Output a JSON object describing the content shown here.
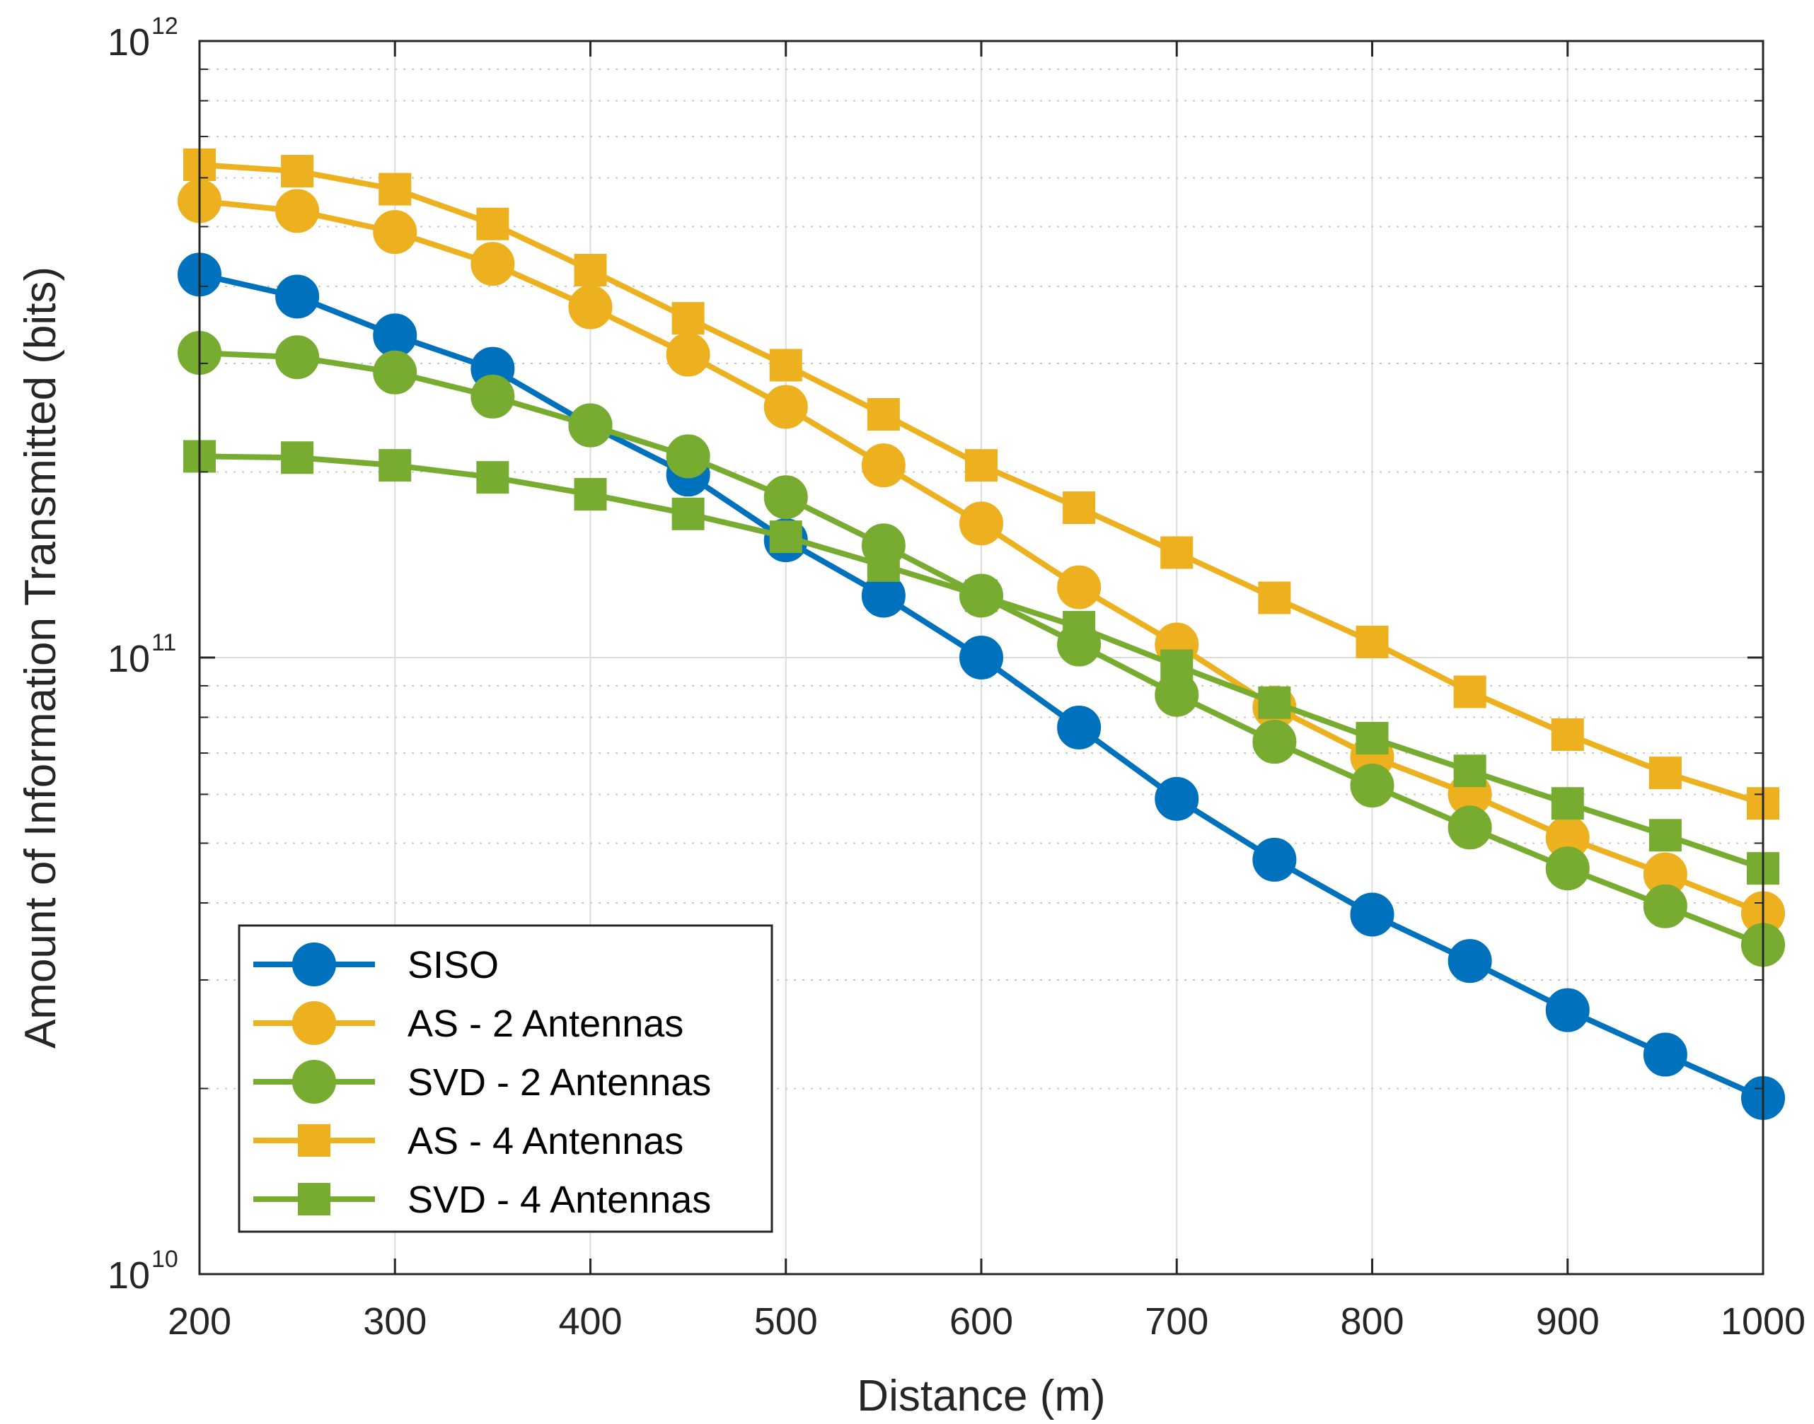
{
  "chart_data": {
    "type": "line",
    "title": "",
    "xlabel": "Distance (m)",
    "ylabel": "Amount of Information Transmitted (bits)",
    "xlim": [
      200,
      1000
    ],
    "ylim": [
      10000000000,
      1000000000000
    ],
    "yscale": "log",
    "grid": true,
    "legend_position": "bottom-left",
    "x_ticks": [
      200,
      300,
      400,
      500,
      600,
      700,
      800,
      900,
      1000
    ],
    "x_tick_labels": [
      "200",
      "300",
      "400",
      "500",
      "600",
      "700",
      "800",
      "900",
      "1000"
    ],
    "y_ticks": [
      {
        "value": 10000000000,
        "base": "10",
        "exp": "10"
      },
      {
        "value": 100000000000,
        "base": "10",
        "exp": "11"
      },
      {
        "value": 1000000000000,
        "base": "10",
        "exp": "12"
      }
    ],
    "x": [
      200,
      250,
      300,
      350,
      400,
      450,
      500,
      550,
      600,
      650,
      700,
      750,
      800,
      850,
      900,
      950,
      1000
    ],
    "series": [
      {
        "name": "SISO",
        "color": "#0072BD",
        "marker": "circle",
        "values": [
          418000000000.0,
          385000000000.0,
          333000000000.0,
          294000000000.0,
          238000000000.0,
          198000000000.0,
          155000000000.0,
          126000000000.0,
          100000000000.0,
          77000000000.0,
          59000000000.0,
          47000000000.0,
          38300000000.0,
          32200000000.0,
          26800000000.0,
          22700000000.0,
          19300000000.0
        ]
      },
      {
        "name": "AS - 2 Antennas",
        "color": "#EDB120",
        "marker": "circle",
        "values": [
          550000000000.0,
          530000000000.0,
          490000000000.0,
          435000000000.0,
          370000000000.0,
          310000000000.0,
          255000000000.0,
          205000000000.0,
          165000000000.0,
          130000000000.0,
          105000000000.0,
          83000000000.0,
          69000000000.0,
          60000000000.0,
          51000000000.0,
          44500000000.0,
          38500000000.0
        ]
      },
      {
        "name": "SVD - 2 Antennas",
        "color": "#77AC30",
        "marker": "circle",
        "values": [
          312000000000.0,
          307000000000.0,
          290000000000.0,
          265000000000.0,
          238000000000.0,
          212000000000.0,
          182000000000.0,
          152000000000.0,
          126000000000.0,
          105000000000.0,
          87000000000.0,
          73000000000.0,
          62000000000.0,
          53000000000.0,
          45500000000.0,
          39500000000.0,
          34200000000.0
        ]
      },
      {
        "name": "AS - 4 Antennas",
        "color": "#EDB120",
        "marker": "square",
        "values": [
          630000000000.0,
          615000000000.0,
          575000000000.0,
          505000000000.0,
          425000000000.0,
          355000000000.0,
          298000000000.0,
          248000000000.0,
          205000000000.0,
          175000000000.0,
          148000000000.0,
          125000000000.0,
          106000000000.0,
          88000000000.0,
          75000000000.0,
          65000000000.0,
          58000000000.0
        ]
      },
      {
        "name": "SVD - 4 Antennas",
        "color": "#77AC30",
        "marker": "square",
        "values": [
          212000000000.0,
          211000000000.0,
          205000000000.0,
          196000000000.0,
          184000000000.0,
          171000000000.0,
          157000000000.0,
          141000000000.0,
          126000000000.0,
          112000000000.0,
          97000000000.0,
          84500000000.0,
          74000000000.0,
          65500000000.0,
          58000000000.0,
          51500000000.0,
          45500000000.0
        ]
      }
    ]
  }
}
